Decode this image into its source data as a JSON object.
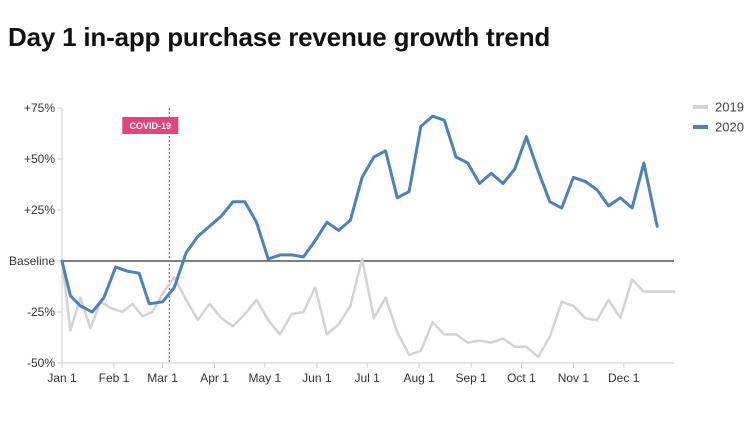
{
  "chart_data": {
    "type": "line",
    "title": "Day 1 in-app purchase revenue growth trend",
    "xlabel": "",
    "ylabel": "",
    "ylim": [
      -50,
      75
    ],
    "y_ticks": [
      {
        "value": 75,
        "label": "+75%"
      },
      {
        "value": 50,
        "label": "+50%"
      },
      {
        "value": 25,
        "label": "+25%"
      },
      {
        "value": 0,
        "label": "Baseline"
      },
      {
        "value": -25,
        "label": "-25%"
      },
      {
        "value": -50,
        "label": "-50%"
      }
    ],
    "x_domain": [
      "2020-01-01",
      "2020-12-31"
    ],
    "x_ticks": [
      {
        "date": "2020-01-01",
        "label": "Jan 1"
      },
      {
        "date": "2020-02-01",
        "label": "Feb 1"
      },
      {
        "date": "2020-03-01",
        "label": "Mar 1"
      },
      {
        "date": "2020-04-01",
        "label": "Apr 1"
      },
      {
        "date": "2020-05-01",
        "label": "May 1"
      },
      {
        "date": "2020-06-01",
        "label": "Jun 1"
      },
      {
        "date": "2020-07-01",
        "label": "Jul 1"
      },
      {
        "date": "2020-08-01",
        "label": "Aug 1"
      },
      {
        "date": "2020-09-01",
        "label": "Sep 1"
      },
      {
        "date": "2020-10-01",
        "label": "Oct 1"
      },
      {
        "date": "2020-11-01",
        "label": "Nov 1"
      },
      {
        "date": "2020-12-01",
        "label": "Dec 1"
      }
    ],
    "grid": false,
    "legend": "top-right",
    "annotations": [
      {
        "date": "2020-03-05",
        "label": "COVID-19",
        "color": "#e0457b"
      }
    ],
    "series": [
      {
        "name": "2019",
        "color": "#d3d3d3",
        "points": [
          {
            "x": "2020-01-01",
            "y": 0
          },
          {
            "x": "2020-01-06",
            "y": -34
          },
          {
            "x": "2020-01-12",
            "y": -18
          },
          {
            "x": "2020-01-18",
            "y": -33
          },
          {
            "x": "2020-01-24",
            "y": -20
          },
          {
            "x": "2020-01-30",
            "y": -23
          },
          {
            "x": "2020-02-06",
            "y": -25
          },
          {
            "x": "2020-02-12",
            "y": -21
          },
          {
            "x": "2020-02-18",
            "y": -27
          },
          {
            "x": "2020-02-24",
            "y": -25
          },
          {
            "x": "2020-03-01",
            "y": -16
          },
          {
            "x": "2020-03-08",
            "y": -8
          },
          {
            "x": "2020-03-15",
            "y": -19
          },
          {
            "x": "2020-03-22",
            "y": -29
          },
          {
            "x": "2020-03-29",
            "y": -21
          },
          {
            "x": "2020-04-05",
            "y": -28
          },
          {
            "x": "2020-04-12",
            "y": -32
          },
          {
            "x": "2020-04-19",
            "y": -26
          },
          {
            "x": "2020-04-26",
            "y": -19
          },
          {
            "x": "2020-05-03",
            "y": -29
          },
          {
            "x": "2020-05-10",
            "y": -36
          },
          {
            "x": "2020-05-17",
            "y": -26
          },
          {
            "x": "2020-05-24",
            "y": -25
          },
          {
            "x": "2020-05-31",
            "y": -13
          },
          {
            "x": "2020-06-07",
            "y": -36
          },
          {
            "x": "2020-06-14",
            "y": -31
          },
          {
            "x": "2020-06-21",
            "y": -22
          },
          {
            "x": "2020-06-28",
            "y": 1
          },
          {
            "x": "2020-07-05",
            "y": -28
          },
          {
            "x": "2020-07-12",
            "y": -18
          },
          {
            "x": "2020-07-19",
            "y": -35
          },
          {
            "x": "2020-07-26",
            "y": -46
          },
          {
            "x": "2020-08-02",
            "y": -44
          },
          {
            "x": "2020-08-09",
            "y": -30
          },
          {
            "x": "2020-08-16",
            "y": -36
          },
          {
            "x": "2020-08-23",
            "y": -36
          },
          {
            "x": "2020-08-30",
            "y": -40
          },
          {
            "x": "2020-09-06",
            "y": -39
          },
          {
            "x": "2020-09-13",
            "y": -40
          },
          {
            "x": "2020-09-20",
            "y": -38
          },
          {
            "x": "2020-09-27",
            "y": -42
          },
          {
            "x": "2020-10-04",
            "y": -42
          },
          {
            "x": "2020-10-11",
            "y": -47
          },
          {
            "x": "2020-10-18",
            "y": -37
          },
          {
            "x": "2020-10-25",
            "y": -20
          },
          {
            "x": "2020-11-01",
            "y": -22
          },
          {
            "x": "2020-11-08",
            "y": -28
          },
          {
            "x": "2020-11-15",
            "y": -29
          },
          {
            "x": "2020-11-22",
            "y": -19
          },
          {
            "x": "2020-11-29",
            "y": -28
          },
          {
            "x": "2020-12-06",
            "y": -9
          },
          {
            "x": "2020-12-13",
            "y": -15
          },
          {
            "x": "2020-12-31",
            "y": -15
          }
        ]
      },
      {
        "name": "2020",
        "color": "#4a82be",
        "points": [
          {
            "x": "2020-01-01",
            "y": 0
          },
          {
            "x": "2020-01-06",
            "y": -17
          },
          {
            "x": "2020-01-12",
            "y": -22
          },
          {
            "x": "2020-01-19",
            "y": -25
          },
          {
            "x": "2020-01-26",
            "y": -18
          },
          {
            "x": "2020-02-02",
            "y": -3
          },
          {
            "x": "2020-02-09",
            "y": -5
          },
          {
            "x": "2020-02-16",
            "y": -6
          },
          {
            "x": "2020-02-22",
            "y": -21
          },
          {
            "x": "2020-03-01",
            "y": -20
          },
          {
            "x": "2020-03-08",
            "y": -13
          },
          {
            "x": "2020-03-15",
            "y": 4
          },
          {
            "x": "2020-03-22",
            "y": 12
          },
          {
            "x": "2020-03-29",
            "y": 17
          },
          {
            "x": "2020-04-05",
            "y": 22
          },
          {
            "x": "2020-04-12",
            "y": 29
          },
          {
            "x": "2020-04-19",
            "y": 29
          },
          {
            "x": "2020-04-26",
            "y": 19
          },
          {
            "x": "2020-05-03",
            "y": 1
          },
          {
            "x": "2020-05-10",
            "y": 3
          },
          {
            "x": "2020-05-17",
            "y": 3
          },
          {
            "x": "2020-05-24",
            "y": 2
          },
          {
            "x": "2020-05-31",
            "y": 10
          },
          {
            "x": "2020-06-07",
            "y": 19
          },
          {
            "x": "2020-06-14",
            "y": 15
          },
          {
            "x": "2020-06-21",
            "y": 20
          },
          {
            "x": "2020-06-28",
            "y": 41
          },
          {
            "x": "2020-07-05",
            "y": 51
          },
          {
            "x": "2020-07-12",
            "y": 54
          },
          {
            "x": "2020-07-19",
            "y": 31
          },
          {
            "x": "2020-07-26",
            "y": 34
          },
          {
            "x": "2020-08-02",
            "y": 66
          },
          {
            "x": "2020-08-09",
            "y": 71
          },
          {
            "x": "2020-08-16",
            "y": 69
          },
          {
            "x": "2020-08-23",
            "y": 51
          },
          {
            "x": "2020-08-30",
            "y": 48
          },
          {
            "x": "2020-09-06",
            "y": 38
          },
          {
            "x": "2020-09-13",
            "y": 43
          },
          {
            "x": "2020-09-20",
            "y": 38
          },
          {
            "x": "2020-09-27",
            "y": 45
          },
          {
            "x": "2020-10-04",
            "y": 61
          },
          {
            "x": "2020-10-11",
            "y": 44
          },
          {
            "x": "2020-10-18",
            "y": 29
          },
          {
            "x": "2020-10-25",
            "y": 26
          },
          {
            "x": "2020-11-01",
            "y": 41
          },
          {
            "x": "2020-11-08",
            "y": 39
          },
          {
            "x": "2020-11-15",
            "y": 35
          },
          {
            "x": "2020-11-22",
            "y": 27
          },
          {
            "x": "2020-11-29",
            "y": 31
          },
          {
            "x": "2020-12-06",
            "y": 26
          },
          {
            "x": "2020-12-13",
            "y": 48
          },
          {
            "x": "2020-12-21",
            "y": 17
          }
        ]
      }
    ]
  }
}
